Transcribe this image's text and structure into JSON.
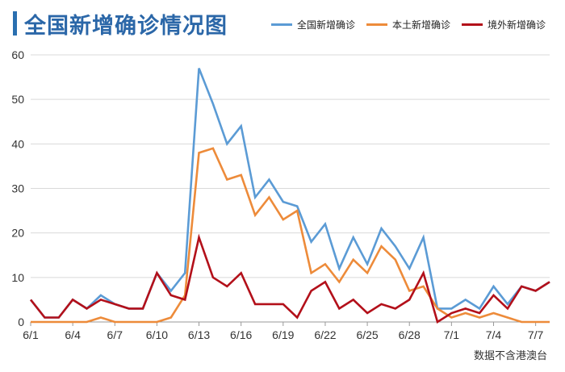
{
  "chart_data": {
    "type": "line",
    "title": "全国新增确诊情况图",
    "note": "数据不含港澳台",
    "x": [
      "6/1",
      "6/2",
      "6/3",
      "6/4",
      "6/5",
      "6/6",
      "6/7",
      "6/8",
      "6/9",
      "6/10",
      "6/11",
      "6/12",
      "6/13",
      "6/14",
      "6/15",
      "6/16",
      "6/17",
      "6/18",
      "6/19",
      "6/20",
      "6/21",
      "6/22",
      "6/23",
      "6/24",
      "6/25",
      "6/26",
      "6/27",
      "6/28",
      "6/29",
      "6/30",
      "7/1",
      "7/2",
      "7/3",
      "7/4",
      "7/5",
      "7/6",
      "7/7",
      "7/8"
    ],
    "xticks": [
      "6/1",
      "6/4",
      "6/7",
      "6/10",
      "6/13",
      "6/16",
      "6/19",
      "6/22",
      "6/25",
      "6/28",
      "7/1",
      "7/4",
      "7/7"
    ],
    "ylim": [
      0,
      60
    ],
    "yticks": [
      0,
      10,
      20,
      30,
      40,
      50,
      60
    ],
    "grid": true,
    "legend_position": "top-right",
    "series": [
      {
        "name": "全国新增确诊",
        "color": "#5b9bd5",
        "values": [
          5,
          1,
          1,
          5,
          3,
          6,
          4,
          3,
          3,
          11,
          7,
          11,
          57,
          49,
          40,
          44,
          28,
          32,
          27,
          26,
          18,
          22,
          12,
          19,
          13,
          21,
          17,
          12,
          19,
          3,
          3,
          5,
          3,
          8,
          4,
          8,
          7,
          9
        ]
      },
      {
        "name": "本土新增确诊",
        "color": "#ed8b3a",
        "values": [
          0,
          0,
          0,
          0,
          0,
          1,
          0,
          0,
          0,
          0,
          1,
          6,
          38,
          39,
          32,
          33,
          24,
          28,
          23,
          25,
          11,
          13,
          9,
          14,
          11,
          17,
          14,
          7,
          8,
          3,
          1,
          2,
          1,
          2,
          1,
          0,
          0,
          0
        ]
      },
      {
        "name": "境外新增确诊",
        "color": "#b3101a",
        "values": [
          5,
          1,
          1,
          5,
          3,
          5,
          4,
          3,
          3,
          11,
          6,
          5,
          19,
          10,
          8,
          11,
          4,
          4,
          4,
          1,
          7,
          9,
          3,
          5,
          2,
          4,
          3,
          5,
          11,
          0,
          2,
          3,
          2,
          6,
          3,
          8,
          7,
          9
        ]
      }
    ]
  }
}
